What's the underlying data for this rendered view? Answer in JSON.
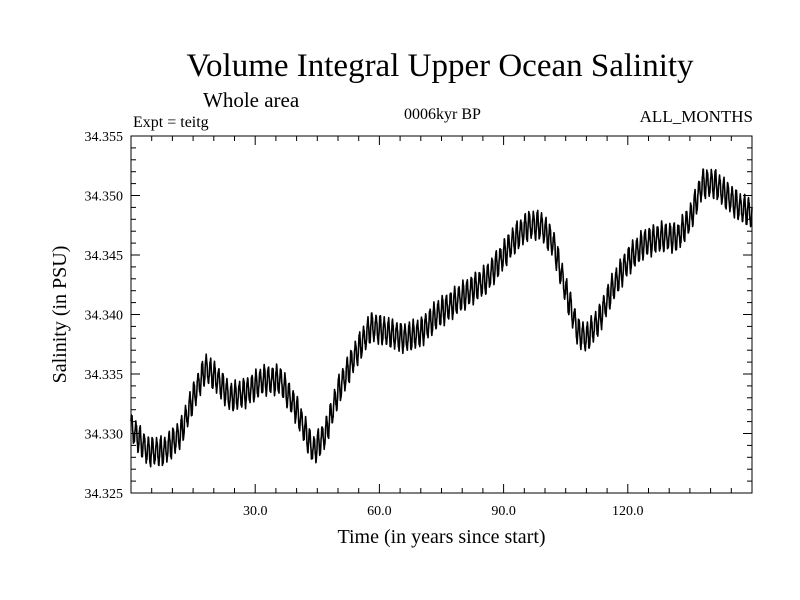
{
  "chart_data": {
    "type": "line",
    "title": "Volume Integral Upper Ocean Salinity",
    "subtitle": "Whole area",
    "annotations": {
      "experiment": "Expt = teitg",
      "period": "0006kyr BP",
      "months": "ALL_MONTHS"
    },
    "xlabel": "Time (in years since start)",
    "ylabel": "Salinity (in PSU)",
    "xlim": [
      0,
      150
    ],
    "ylim": [
      34.325,
      34.355
    ],
    "xticks": [
      30,
      60,
      90,
      120
    ],
    "xtick_labels": [
      "30.0",
      "60.0",
      "90.0",
      "120.0"
    ],
    "yticks": [
      34.325,
      34.33,
      34.335,
      34.34,
      34.345,
      34.35,
      34.355
    ],
    "ytick_labels": [
      "34.325",
      "34.330",
      "34.335",
      "34.340",
      "34.345",
      "34.350",
      "34.355"
    ],
    "grid": false,
    "series": [
      {
        "name": "Salinity",
        "trend_x": [
          0,
          4,
          8,
          12,
          15,
          18,
          21,
          24,
          28,
          32,
          36,
          40,
          44,
          47,
          50,
          54,
          58,
          62,
          66,
          70,
          74,
          78,
          82,
          86,
          90,
          93,
          96,
          99,
          102,
          105,
          108,
          110,
          113,
          116,
          120,
          124,
          128,
          132,
          135,
          138,
          141,
          144,
          147,
          150
        ],
        "trend_y": [
          34.3305,
          34.3285,
          34.3285,
          34.33,
          34.333,
          34.3355,
          34.3345,
          34.333,
          34.3335,
          34.3345,
          34.3345,
          34.332,
          34.3285,
          34.33,
          34.3335,
          34.3365,
          34.339,
          34.3385,
          34.338,
          34.3385,
          34.34,
          34.341,
          34.342,
          34.343,
          34.345,
          34.3465,
          34.3475,
          34.3475,
          34.346,
          34.342,
          34.3385,
          34.338,
          34.3395,
          34.342,
          34.3445,
          34.346,
          34.3465,
          34.3465,
          34.348,
          34.351,
          34.351,
          34.35,
          34.349,
          34.3485
        ],
        "oscillation_amplitude": 0.0011,
        "samples_per_year": 12
      }
    ]
  }
}
